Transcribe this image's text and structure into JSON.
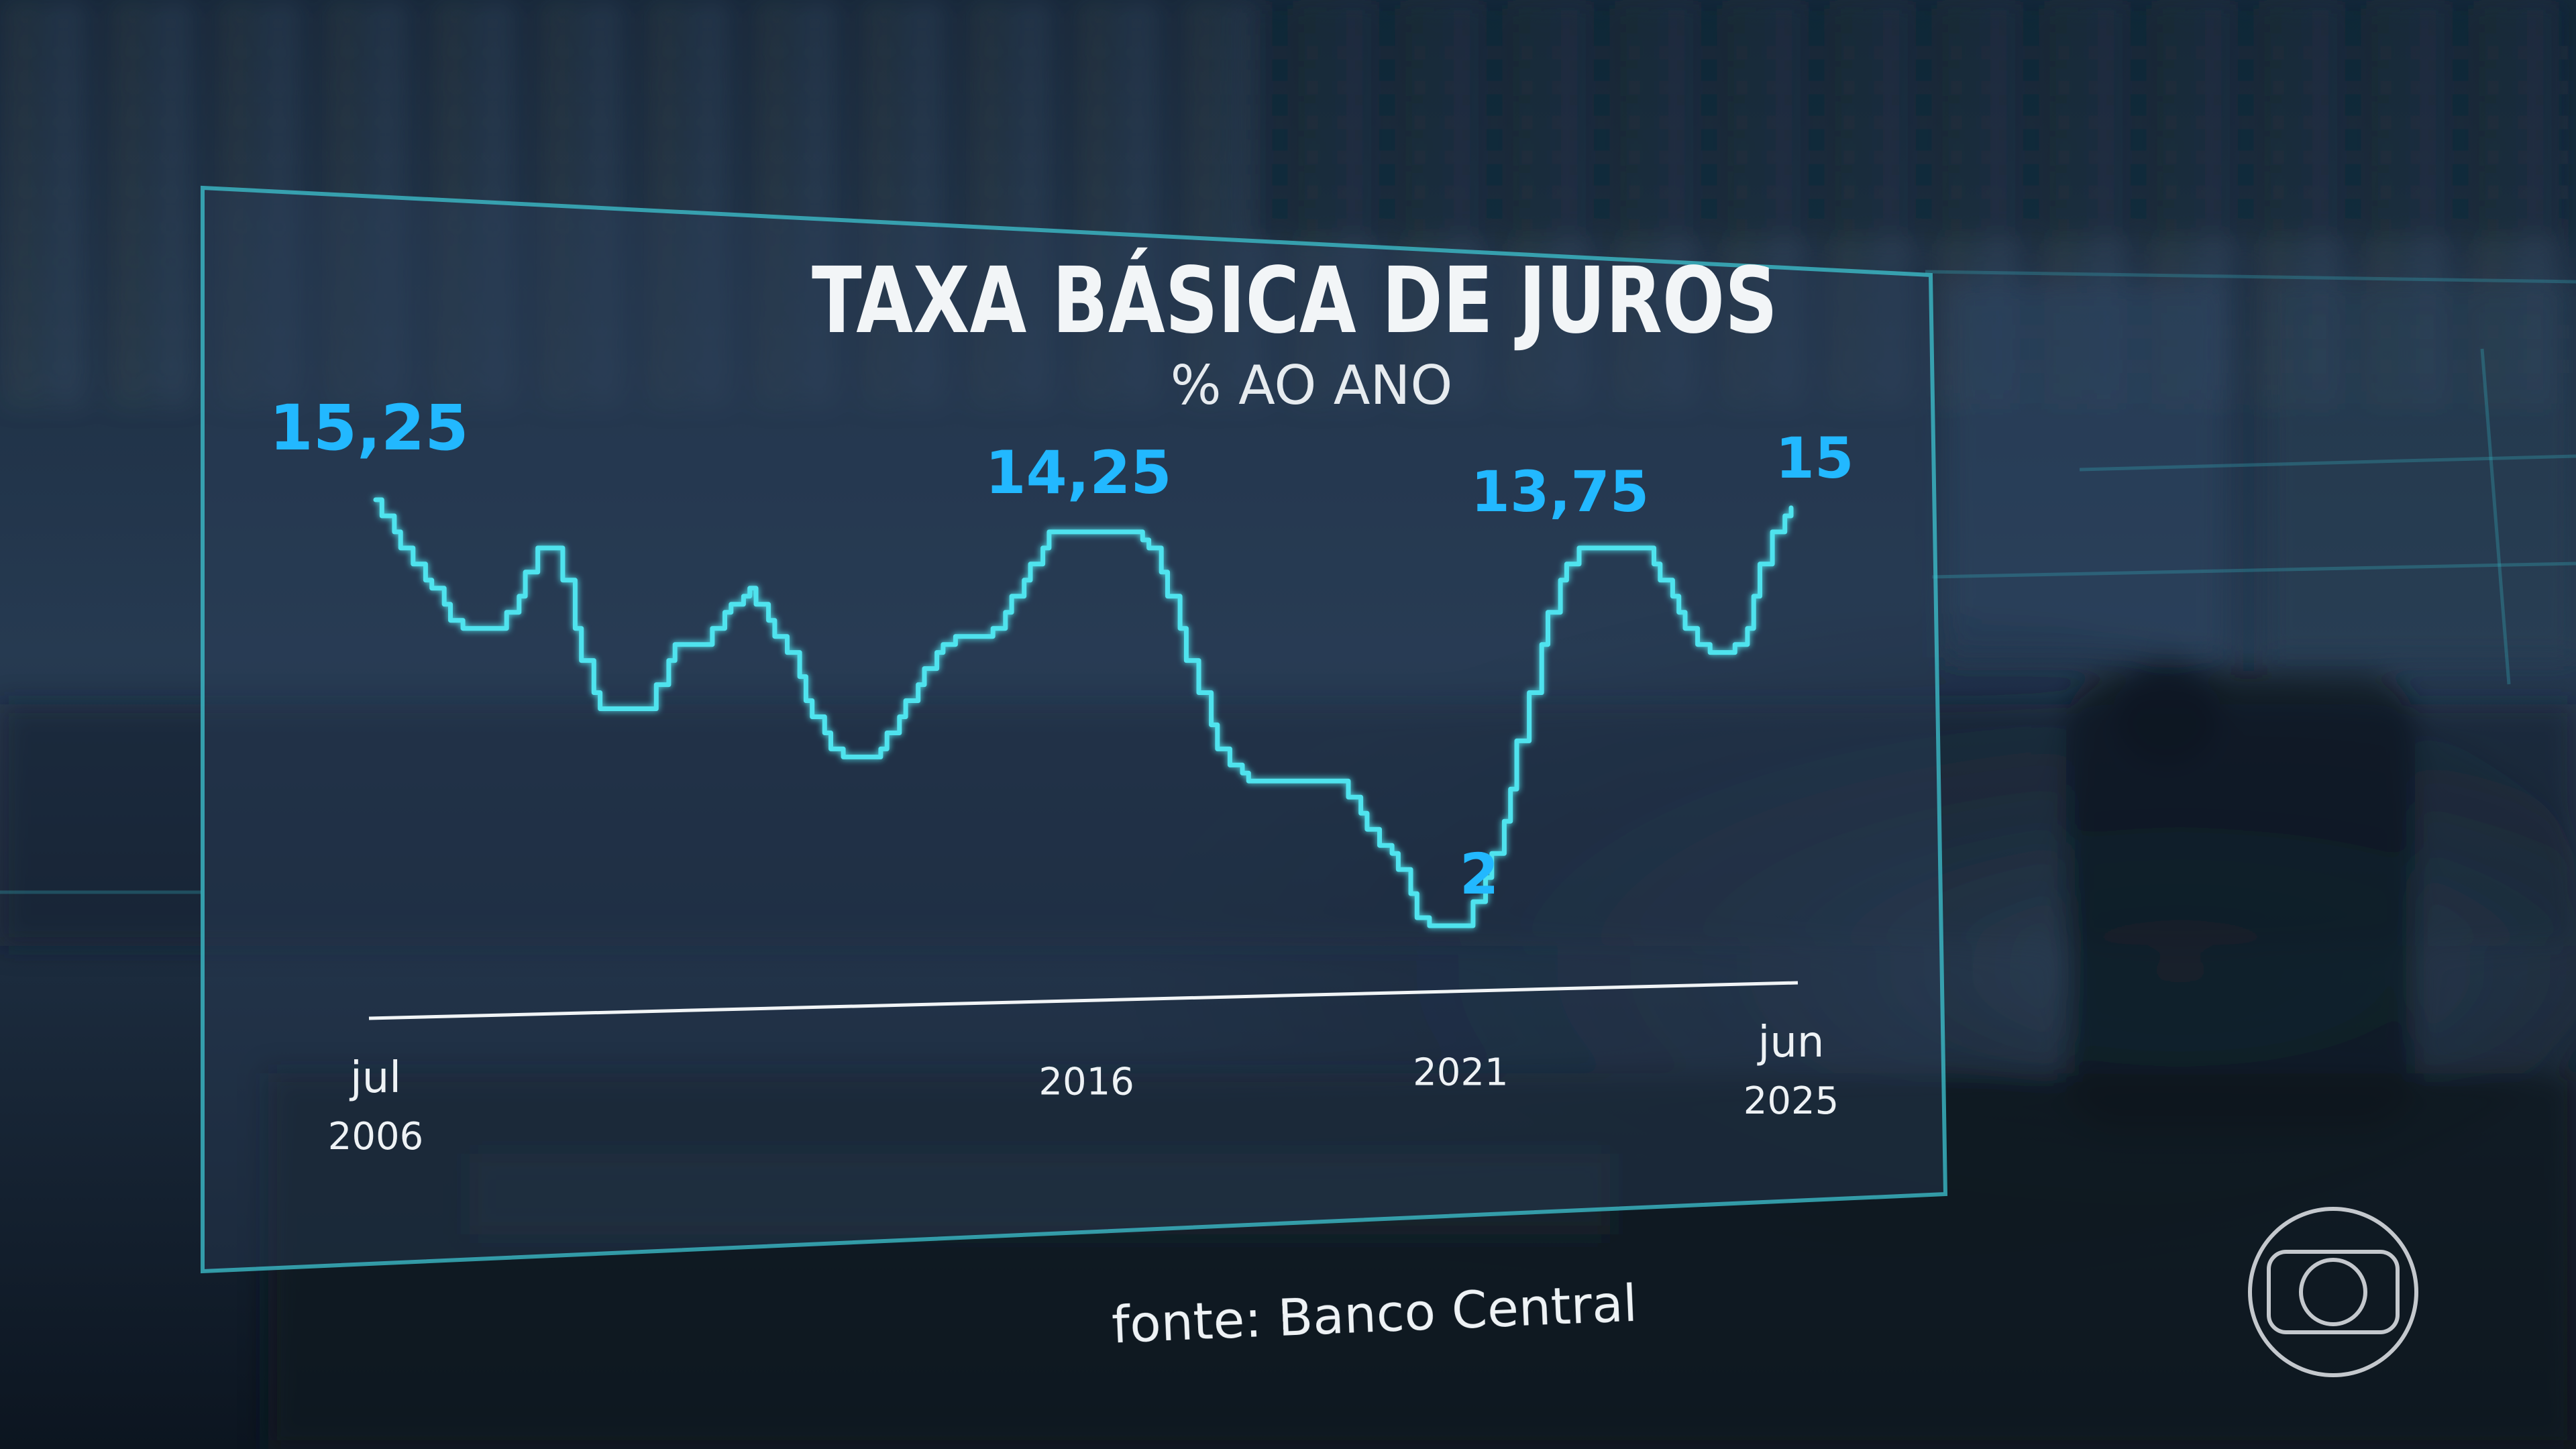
{
  "chart_data": {
    "type": "line",
    "title": "TAXA BÁSICA DE JUROS",
    "subtitle": "% AO ANO",
    "source": "fonte: Banco Central",
    "ylabel": "% ao ano",
    "line_color": "#4fe3ee",
    "label_color": "#22b8ff",
    "grid": false,
    "x_ticks": [
      {
        "label": [
          "jul",
          "2006"
        ],
        "date": "2006-07"
      },
      {
        "label": [
          "2016"
        ],
        "date": "2016-01"
      },
      {
        "label": [
          "2021"
        ],
        "date": "2021-01"
      },
      {
        "label": [
          "jun",
          "2025"
        ],
        "date": "2025-06"
      }
    ],
    "annotations": [
      {
        "text": "15,25",
        "date": "2006-07",
        "value": 15.25
      },
      {
        "text": "14,25",
        "date": "2015-09",
        "value": 14.25
      },
      {
        "text": "2",
        "date": "2020-12",
        "value": 2
      },
      {
        "text": "13,75",
        "date": "2023-01",
        "value": 13.75
      },
      {
        "text": "15",
        "date": "2025-06",
        "value": 15
      }
    ],
    "series": [
      {
        "points": [
          [
            "2006-07",
            15.25
          ],
          [
            "2006-08",
            14.75
          ],
          [
            "2006-10",
            14.25
          ],
          [
            "2006-11",
            13.75
          ],
          [
            "2007-01",
            13.25
          ],
          [
            "2007-03",
            12.75
          ],
          [
            "2007-04",
            12.5
          ],
          [
            "2007-06",
            12.0
          ],
          [
            "2007-07",
            11.5
          ],
          [
            "2007-09",
            11.25
          ],
          [
            "2008-04",
            11.75
          ],
          [
            "2008-06",
            12.25
          ],
          [
            "2008-07",
            13.0
          ],
          [
            "2008-09",
            13.75
          ],
          [
            "2009-01",
            12.75
          ],
          [
            "2009-03",
            11.25
          ],
          [
            "2009-04",
            10.25
          ],
          [
            "2009-06",
            9.25
          ],
          [
            "2009-07",
            8.75
          ],
          [
            "2010-04",
            9.5
          ],
          [
            "2010-06",
            10.25
          ],
          [
            "2010-07",
            10.75
          ],
          [
            "2011-01",
            11.25
          ],
          [
            "2011-03",
            11.75
          ],
          [
            "2011-04",
            12.0
          ],
          [
            "2011-06",
            12.25
          ],
          [
            "2011-07",
            12.5
          ],
          [
            "2011-08",
            12.0
          ],
          [
            "2011-10",
            11.5
          ],
          [
            "2011-11",
            11.0
          ],
          [
            "2012-01",
            10.5
          ],
          [
            "2012-03",
            9.75
          ],
          [
            "2012-04",
            9.0
          ],
          [
            "2012-05",
            8.5
          ],
          [
            "2012-07",
            8.0
          ],
          [
            "2012-08",
            7.5
          ],
          [
            "2012-10",
            7.25
          ],
          [
            "2013-04",
            7.5
          ],
          [
            "2013-05",
            8.0
          ],
          [
            "2013-07",
            8.5
          ],
          [
            "2013-08",
            9.0
          ],
          [
            "2013-10",
            9.5
          ],
          [
            "2013-11",
            10.0
          ],
          [
            "2014-01",
            10.5
          ],
          [
            "2014-02",
            10.75
          ],
          [
            "2014-04",
            11.0
          ],
          [
            "2014-10",
            11.25
          ],
          [
            "2014-12",
            11.75
          ],
          [
            "2015-01",
            12.25
          ],
          [
            "2015-03",
            12.75
          ],
          [
            "2015-04",
            13.25
          ],
          [
            "2015-06",
            13.75
          ],
          [
            "2015-07",
            14.25
          ],
          [
            "2016-10",
            14.0
          ],
          [
            "2016-11",
            13.75
          ],
          [
            "2017-01",
            13.0
          ],
          [
            "2017-02",
            12.25
          ],
          [
            "2017-04",
            11.25
          ],
          [
            "2017-05",
            10.25
          ],
          [
            "2017-07",
            9.25
          ],
          [
            "2017-09",
            8.25
          ],
          [
            "2017-10",
            7.5
          ],
          [
            "2017-12",
            7.0
          ],
          [
            "2018-02",
            6.75
          ],
          [
            "2018-03",
            6.5
          ],
          [
            "2019-07",
            6.0
          ],
          [
            "2019-09",
            5.5
          ],
          [
            "2019-10",
            5.0
          ],
          [
            "2019-12",
            4.5
          ],
          [
            "2020-02",
            4.25
          ],
          [
            "2020-03",
            3.75
          ],
          [
            "2020-05",
            3.0
          ],
          [
            "2020-06",
            2.25
          ],
          [
            "2020-08",
            2.0
          ],
          [
            "2021-03",
            2.75
          ],
          [
            "2021-05",
            3.5
          ],
          [
            "2021-06",
            4.25
          ],
          [
            "2021-08",
            5.25
          ],
          [
            "2021-09",
            6.25
          ],
          [
            "2021-10",
            7.75
          ],
          [
            "2021-12",
            9.25
          ],
          [
            "2022-02",
            10.75
          ],
          [
            "2022-03",
            11.75
          ],
          [
            "2022-05",
            12.75
          ],
          [
            "2022-06",
            13.25
          ],
          [
            "2022-08",
            13.75
          ],
          [
            "2023-08",
            13.25
          ],
          [
            "2023-09",
            12.75
          ],
          [
            "2023-11",
            12.25
          ],
          [
            "2023-12",
            11.75
          ],
          [
            "2024-01",
            11.25
          ],
          [
            "2024-03",
            10.75
          ],
          [
            "2024-05",
            10.5
          ],
          [
            "2024-09",
            10.75
          ],
          [
            "2024-11",
            11.25
          ],
          [
            "2024-12",
            12.25
          ],
          [
            "2025-01",
            13.25
          ],
          [
            "2025-03",
            14.25
          ],
          [
            "2025-05",
            14.75
          ],
          [
            "2025-06",
            15.0
          ]
        ]
      }
    ]
  },
  "logo": {
    "name": "broadcaster-logo"
  }
}
